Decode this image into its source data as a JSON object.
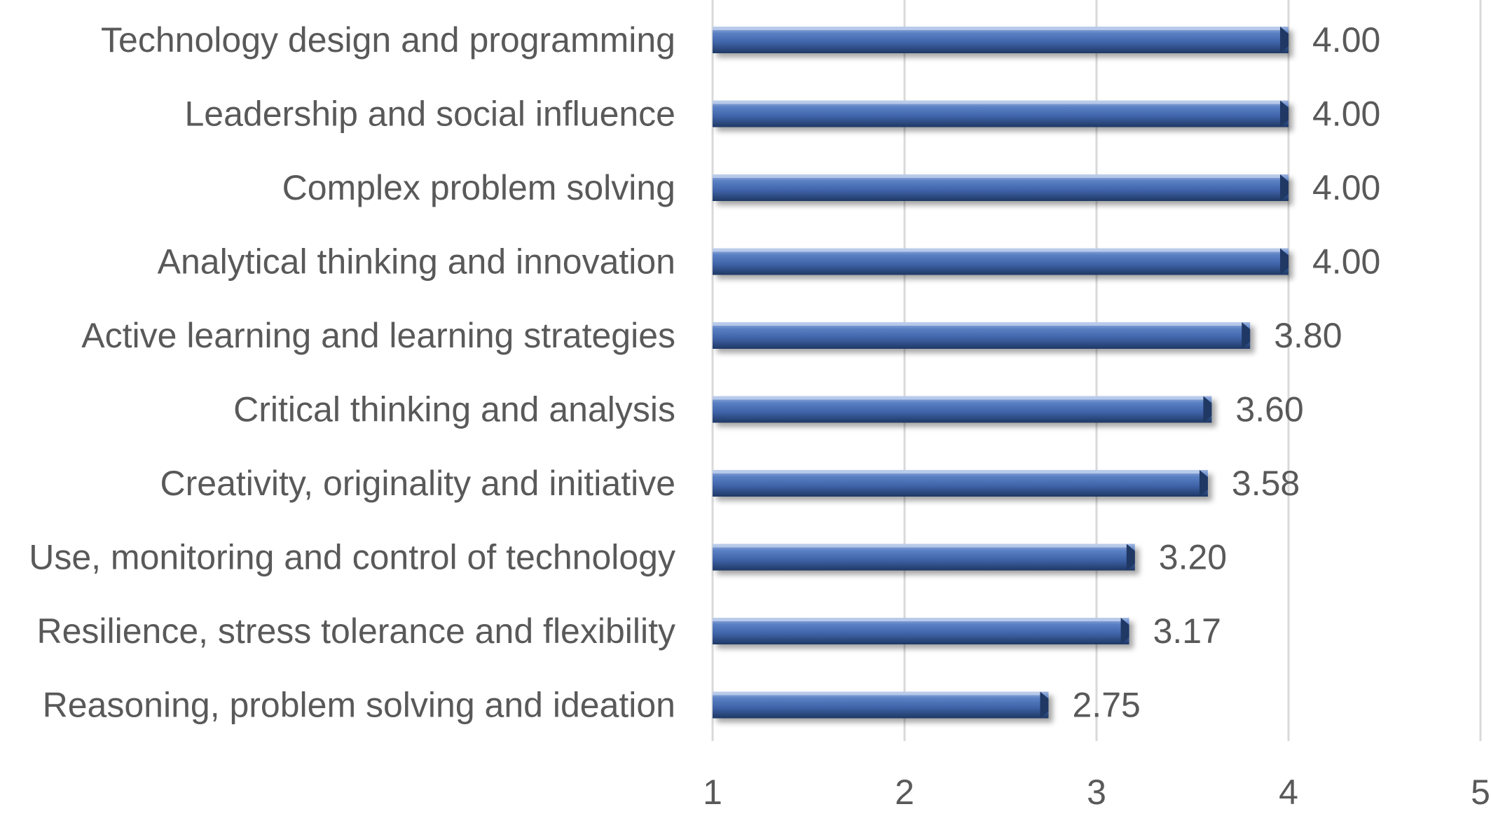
{
  "chart_data": {
    "type": "bar",
    "orientation": "horizontal",
    "categories": [
      "Technology design and programming",
      "Leadership and social influence",
      "Complex problem solving",
      "Analytical thinking and innovation",
      "Active learning and learning strategies",
      "Critical thinking and analysis",
      "Creativity, originality and initiative",
      "Use, monitoring and control of technology",
      "Resilience, stress tolerance and flexibility",
      "Reasoning, problem solving and ideation"
    ],
    "values": [
      4.0,
      4.0,
      4.0,
      4.0,
      3.8,
      3.6,
      3.58,
      3.2,
      3.17,
      2.75
    ],
    "value_labels": [
      "4.00",
      "4.00",
      "4.00",
      "4.00",
      "3.80",
      "3.60",
      "3.58",
      "3.20",
      "3.17",
      "2.75"
    ],
    "xlim": [
      1,
      5
    ],
    "x_ticks": [
      "1",
      "2",
      "3",
      "4",
      "5"
    ],
    "title": "",
    "xlabel": "",
    "ylabel": "",
    "grid": "vertical",
    "legend": "none",
    "bar_color": "#4a6fb5",
    "bar_dark_color": "#1f3864",
    "grid_color": "#d9d9d9",
    "text_color": "#595959"
  }
}
